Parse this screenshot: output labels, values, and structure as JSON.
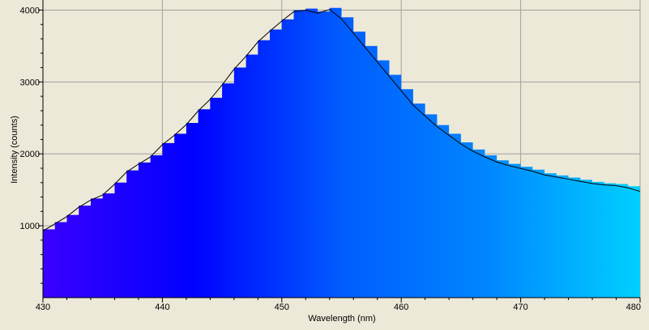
{
  "chart_data": {
    "type": "area",
    "xlabel": "Wavelength (nm)",
    "ylabel": "Intensity (counts)",
    "xlim": [
      430,
      480
    ],
    "ylim": [
      0,
      4050
    ],
    "x_ticks": [
      430,
      440,
      450,
      460,
      470,
      480
    ],
    "y_ticks": [
      1000,
      2000,
      3000,
      4000
    ],
    "grid": true,
    "colors": {
      "background": "#ECE9D8",
      "grid": "#A0A0A0",
      "axis": "#000000",
      "line": "#000000",
      "fill_gradient": [
        "#3A00FF",
        "#0000FF",
        "#005CFF",
        "#0088FF",
        "#00D0FF"
      ]
    },
    "series": [
      {
        "x": [
          430,
          431,
          432,
          433,
          434,
          435,
          436,
          437,
          438,
          439,
          440,
          441,
          442,
          443,
          444,
          445,
          446,
          447,
          448,
          449,
          450,
          451,
          452,
          453,
          454,
          455,
          456,
          457,
          458,
          459,
          460,
          461,
          462,
          463,
          464,
          465,
          466,
          467,
          468,
          469,
          470,
          471,
          472,
          473,
          474,
          475,
          476,
          477,
          478,
          479,
          480
        ],
        "values": [
          950,
          1050,
          1150,
          1280,
          1380,
          1450,
          1600,
          1770,
          1880,
          1980,
          2150,
          2280,
          2430,
          2620,
          2780,
          2980,
          3200,
          3380,
          3580,
          3730,
          3870,
          4000,
          4020,
          3980,
          4030,
          3900,
          3700,
          3500,
          3300,
          3100,
          2900,
          2700,
          2550,
          2400,
          2280,
          2160,
          2060,
          1980,
          1910,
          1860,
          1820,
          1780,
          1730,
          1700,
          1670,
          1640,
          1610,
          1590,
          1580,
          1550,
          1500
        ]
      }
    ]
  }
}
